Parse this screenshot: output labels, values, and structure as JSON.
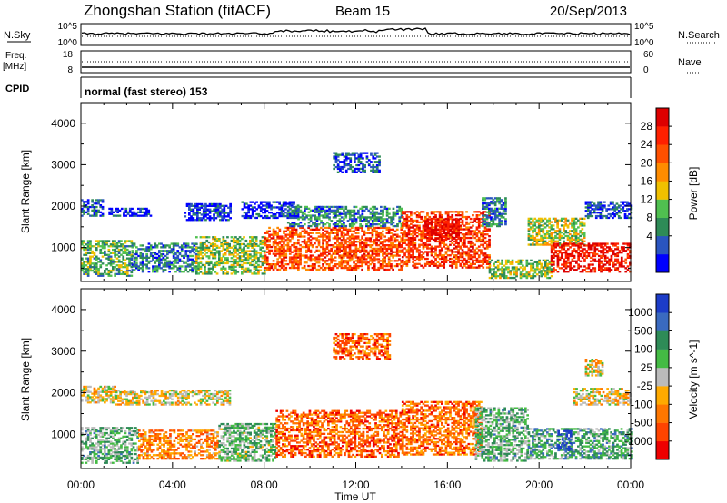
{
  "header": {
    "station": "Zhongshan Station (fitACF)",
    "beam": "Beam 15",
    "date": "20/Sep/2013"
  },
  "strips": {
    "nsky_label": "N.Sky",
    "nsky_ticks": [
      "10^5",
      "10^0"
    ],
    "nsearch_label": "N.Search",
    "nsearch_ticks": [
      "10^5",
      "10^0"
    ],
    "freq_label": "Freq.",
    "freq_unit": "[MHz]",
    "freq_ticks": [
      "18",
      "8"
    ],
    "nave_label": "Nave",
    "nave_ticks": [
      "60",
      "0"
    ],
    "cpid_label": "CPID",
    "cpid_value": "normal (fast stereo) 153"
  },
  "colors": {
    "power": [
      "#0000ff",
      "#2a55c0",
      "#2e8b57",
      "#50c050",
      "#f0c000",
      "#ff8c00",
      "#ff5000",
      "#ff2000",
      "#dd0000"
    ],
    "velocity": [
      "#ee0000",
      "#ff4400",
      "#ff7700",
      "#ffaa00",
      "#bbbbbb",
      "#44bb44",
      "#2e8b57",
      "#3a6ac0",
      "#1c3cc8"
    ]
  },
  "chart_data": [
    {
      "type": "heatmap",
      "name": "power",
      "ylabel": "Slant Range [km]",
      "yticks": [
        "4000",
        "3000",
        "2000",
        "1000"
      ],
      "ylim": [
        180,
        4500
      ],
      "xlim": [
        0,
        24
      ],
      "colorbar_label": "Power [dB]",
      "colorbar_ticks": [
        "28",
        "24",
        "20",
        "16",
        "12",
        "8",
        "4"
      ],
      "bands": [
        {
          "t0": 0.0,
          "t1": 2.2,
          "r0": 300,
          "r1": 1150,
          "level": 0.35
        },
        {
          "t0": 0.0,
          "t1": 0.9,
          "r0": 1750,
          "r1": 2150,
          "level": 0.15
        },
        {
          "t0": 1.2,
          "t1": 3.0,
          "r0": 1750,
          "r1": 1950,
          "level": 0.1
        },
        {
          "t0": 2.2,
          "t1": 5.0,
          "r0": 400,
          "r1": 1100,
          "level": 0.25
        },
        {
          "t0": 4.5,
          "t1": 6.5,
          "r0": 1650,
          "r1": 2050,
          "level": 0.1
        },
        {
          "t0": 5.0,
          "t1": 8.0,
          "r0": 350,
          "r1": 1250,
          "level": 0.4
        },
        {
          "t0": 7.0,
          "t1": 9.5,
          "r0": 1700,
          "r1": 2100,
          "level": 0.1
        },
        {
          "t0": 8.0,
          "t1": 14.0,
          "r0": 450,
          "r1": 1500,
          "level": 0.75
        },
        {
          "t0": 9.0,
          "t1": 14.0,
          "r0": 1500,
          "r1": 2000,
          "level": 0.25
        },
        {
          "t0": 14.0,
          "t1": 17.8,
          "r0": 500,
          "r1": 1850,
          "level": 0.8
        },
        {
          "t0": 15.0,
          "t1": 16.5,
          "r0": 1200,
          "r1": 1700,
          "level": 0.95
        },
        {
          "t0": 17.8,
          "t1": 20.5,
          "r0": 250,
          "r1": 700,
          "level": 0.4
        },
        {
          "t0": 19.5,
          "t1": 22.0,
          "r0": 1050,
          "r1": 1700,
          "level": 0.45
        },
        {
          "t0": 20.5,
          "t1": 24.0,
          "r0": 400,
          "r1": 1100,
          "level": 0.9
        },
        {
          "t0": 22.0,
          "t1": 24.0,
          "r0": 1700,
          "r1": 2100,
          "level": 0.15
        },
        {
          "t0": 17.5,
          "t1": 18.5,
          "r0": 1500,
          "r1": 2200,
          "level": 0.25
        },
        {
          "t0": 11.0,
          "t1": 13.0,
          "r0": 2800,
          "r1": 3300,
          "level": 0.15
        }
      ]
    },
    {
      "type": "heatmap",
      "name": "velocity",
      "ylabel": "Slant Range [km]",
      "yticks": [
        "4000",
        "3000",
        "2000",
        "1000"
      ],
      "ylim": [
        180,
        4500
      ],
      "xlim": [
        0,
        24
      ],
      "colorbar_label": "Velocity [m s^-1]",
      "colorbar_ticks": [
        "1000",
        "500",
        "100",
        "25",
        "-25",
        "-100",
        "-500",
        "-1000"
      ],
      "bands": [
        {
          "t0": 0.0,
          "t1": 1.5,
          "r0": 1750,
          "r1": 2150,
          "level": 0.45
        },
        {
          "t0": 1.5,
          "t1": 6.5,
          "r0": 1700,
          "r1": 2050,
          "level": 0.45
        },
        {
          "t0": 0.0,
          "t1": 2.5,
          "r0": 300,
          "r1": 1150,
          "level": 0.62
        },
        {
          "t0": 2.5,
          "t1": 6.0,
          "r0": 400,
          "r1": 1100,
          "level": 0.3
        },
        {
          "t0": 6.0,
          "t1": 8.5,
          "r0": 350,
          "r1": 1250,
          "level": 0.6
        },
        {
          "t0": 8.5,
          "t1": 14.0,
          "r0": 450,
          "r1": 1550,
          "level": 0.22
        },
        {
          "t0": 14.0,
          "t1": 17.5,
          "r0": 500,
          "r1": 1800,
          "level": 0.25
        },
        {
          "t0": 17.2,
          "t1": 19.5,
          "r0": 350,
          "r1": 1650,
          "level": 0.62
        },
        {
          "t0": 19.5,
          "t1": 24.0,
          "r0": 400,
          "r1": 1150,
          "level": 0.66
        },
        {
          "t0": 20.8,
          "t1": 21.4,
          "r0": 600,
          "r1": 1100,
          "level": 0.95
        },
        {
          "t0": 21.5,
          "t1": 24.0,
          "r0": 1700,
          "r1": 2100,
          "level": 0.45
        },
        {
          "t0": 22.0,
          "t1": 22.8,
          "r0": 2400,
          "r1": 2800,
          "level": 0.45
        },
        {
          "t0": 11.0,
          "t1": 13.5,
          "r0": 2800,
          "r1": 3400,
          "level": 0.22
        }
      ]
    }
  ],
  "xaxis": {
    "label": "Time UT",
    "ticks": [
      "00:00",
      "04:00",
      "08:00",
      "12:00",
      "16:00",
      "20:00",
      "00:00"
    ]
  }
}
